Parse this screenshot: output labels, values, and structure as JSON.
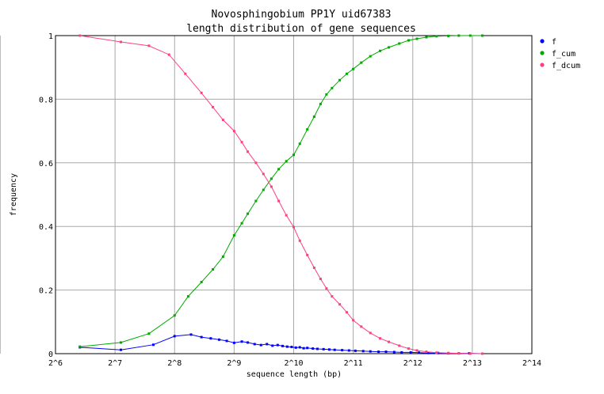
{
  "chart_data": {
    "type": "line",
    "title": "Novosphingobium PP1Y uid67383",
    "subtitle": "length distribution of gene sequences",
    "xlabel": "sequence length (bp)",
    "ylabel": "frequency",
    "x_scale": "log2",
    "xlim": [
      64,
      16384
    ],
    "ylim": [
      0,
      1
    ],
    "grid": true,
    "legend_position": "top-right",
    "x_ticks": [
      {
        "value": 64,
        "label": "2^6"
      },
      {
        "value": 128,
        "label": "2^7"
      },
      {
        "value": 256,
        "label": "2^8"
      },
      {
        "value": 512,
        "label": "2^9"
      },
      {
        "value": 1024,
        "label": "2^10"
      },
      {
        "value": 2048,
        "label": "2^11"
      },
      {
        "value": 4096,
        "label": "2^12"
      },
      {
        "value": 8192,
        "label": "2^13"
      },
      {
        "value": 16384,
        "label": "2^14"
      }
    ],
    "y_ticks": [
      {
        "value": 0,
        "label": "0"
      },
      {
        "value": 0.2,
        "label": "0.2"
      },
      {
        "value": 0.4,
        "label": "0.4"
      },
      {
        "value": 0.6,
        "label": "0.6"
      },
      {
        "value": 0.8,
        "label": "0.8"
      },
      {
        "value": 1,
        "label": "1"
      }
    ],
    "series": [
      {
        "name": "f",
        "color": "#0000ff",
        "points": [
          [
            85,
            0.02
          ],
          [
            137,
            0.012
          ],
          [
            200,
            0.028
          ],
          [
            256,
            0.055
          ],
          [
            310,
            0.06
          ],
          [
            350,
            0.052
          ],
          [
            390,
            0.048
          ],
          [
            430,
            0.044
          ],
          [
            470,
            0.04
          ],
          [
            512,
            0.034
          ],
          [
            560,
            0.038
          ],
          [
            600,
            0.035
          ],
          [
            650,
            0.03
          ],
          [
            700,
            0.027
          ],
          [
            750,
            0.03
          ],
          [
            800,
            0.025
          ],
          [
            850,
            0.027
          ],
          [
            900,
            0.024
          ],
          [
            950,
            0.022
          ],
          [
            1000,
            0.021
          ],
          [
            1050,
            0.019
          ],
          [
            1100,
            0.02
          ],
          [
            1150,
            0.017
          ],
          [
            1200,
            0.018
          ],
          [
            1280,
            0.016
          ],
          [
            1350,
            0.015
          ],
          [
            1450,
            0.014
          ],
          [
            1550,
            0.013
          ],
          [
            1650,
            0.012
          ],
          [
            1800,
            0.011
          ],
          [
            1950,
            0.01
          ],
          [
            2100,
            0.009
          ],
          [
            2300,
            0.008
          ],
          [
            2500,
            0.007
          ],
          [
            2750,
            0.006
          ],
          [
            3000,
            0.006
          ],
          [
            3300,
            0.005
          ],
          [
            3600,
            0.004
          ],
          [
            4000,
            0.004
          ],
          [
            4400,
            0.003
          ],
          [
            4900,
            0.002
          ],
          [
            5500,
            0.002
          ],
          [
            6200,
            0.001
          ],
          [
            7000,
            0.001
          ],
          [
            7900,
            0.001
          ],
          [
            9200,
            0.0
          ]
        ]
      },
      {
        "name": "f_cum",
        "color": "#00aa00",
        "points": [
          [
            85,
            0.022
          ],
          [
            137,
            0.035
          ],
          [
            190,
            0.063
          ],
          [
            256,
            0.12
          ],
          [
            300,
            0.18
          ],
          [
            350,
            0.225
          ],
          [
            400,
            0.265
          ],
          [
            450,
            0.305
          ],
          [
            512,
            0.372
          ],
          [
            560,
            0.41
          ],
          [
            600,
            0.44
          ],
          [
            660,
            0.48
          ],
          [
            720,
            0.515
          ],
          [
            790,
            0.55
          ],
          [
            860,
            0.58
          ],
          [
            940,
            0.605
          ],
          [
            1024,
            0.625
          ],
          [
            1100,
            0.66
          ],
          [
            1200,
            0.705
          ],
          [
            1300,
            0.745
          ],
          [
            1400,
            0.785
          ],
          [
            1500,
            0.815
          ],
          [
            1600,
            0.835
          ],
          [
            1750,
            0.86
          ],
          [
            1900,
            0.88
          ],
          [
            2048,
            0.895
          ],
          [
            2250,
            0.915
          ],
          [
            2500,
            0.935
          ],
          [
            2800,
            0.952
          ],
          [
            3100,
            0.963
          ],
          [
            3500,
            0.975
          ],
          [
            3900,
            0.985
          ],
          [
            4300,
            0.99
          ],
          [
            4800,
            0.995
          ],
          [
            5400,
            0.998
          ],
          [
            6200,
            0.999
          ],
          [
            7000,
            1.0
          ],
          [
            8000,
            1.0
          ],
          [
            9200,
            1.0
          ]
        ]
      },
      {
        "name": "f_dcum",
        "color": "#ff4080",
        "points": [
          [
            85,
            1.0
          ],
          [
            137,
            0.98
          ],
          [
            190,
            0.968
          ],
          [
            240,
            0.94
          ],
          [
            290,
            0.88
          ],
          [
            350,
            0.82
          ],
          [
            400,
            0.775
          ],
          [
            450,
            0.735
          ],
          [
            512,
            0.7
          ],
          [
            560,
            0.665
          ],
          [
            600,
            0.635
          ],
          [
            660,
            0.6
          ],
          [
            720,
            0.565
          ],
          [
            790,
            0.525
          ],
          [
            860,
            0.48
          ],
          [
            940,
            0.435
          ],
          [
            1024,
            0.398
          ],
          [
            1100,
            0.355
          ],
          [
            1200,
            0.31
          ],
          [
            1300,
            0.27
          ],
          [
            1400,
            0.235
          ],
          [
            1500,
            0.205
          ],
          [
            1600,
            0.18
          ],
          [
            1750,
            0.155
          ],
          [
            1900,
            0.13
          ],
          [
            2048,
            0.105
          ],
          [
            2250,
            0.085
          ],
          [
            2500,
            0.065
          ],
          [
            2800,
            0.048
          ],
          [
            3100,
            0.037
          ],
          [
            3500,
            0.025
          ],
          [
            3900,
            0.016
          ],
          [
            4300,
            0.01
          ],
          [
            4800,
            0.006
          ],
          [
            5400,
            0.003
          ],
          [
            6200,
            0.002
          ],
          [
            7000,
            0.001
          ],
          [
            8000,
            0.0
          ],
          [
            9200,
            0.0
          ]
        ]
      }
    ]
  }
}
